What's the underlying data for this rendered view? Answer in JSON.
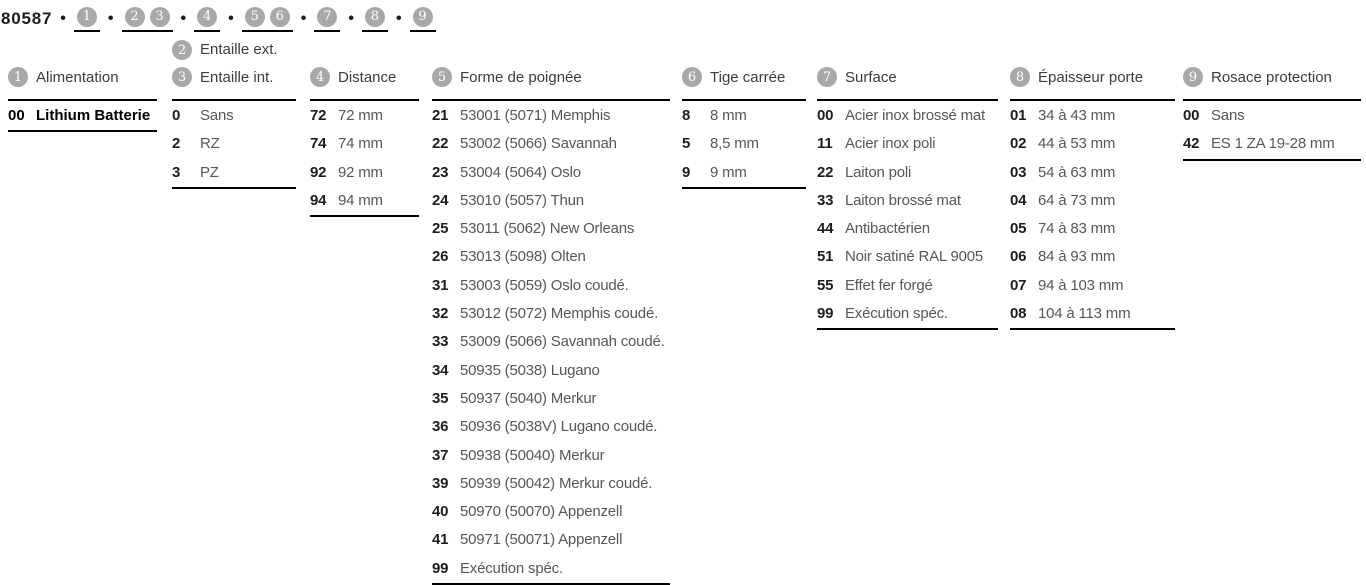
{
  "page": {
    "article_number": "80587",
    "separator": "•",
    "sequence_groups": [
      [
        "1"
      ],
      [
        "2",
        "3"
      ],
      [
        "4"
      ],
      [
        "5",
        "6"
      ],
      [
        "7"
      ],
      [
        "8"
      ],
      [
        "9"
      ]
    ]
  },
  "colors": {
    "circle_gray": "#a8a8a7",
    "label_gray": "#575756",
    "text_black": "#1d1d1b",
    "rule_black": "#000000"
  },
  "columns": [
    {
      "key": "alimentation",
      "circle": "1",
      "title": "Alimentation",
      "options": [
        {
          "code": "00",
          "label": "Lithium Batterie",
          "emphasis": true
        }
      ]
    },
    {
      "key": "entaille",
      "pre_header": {
        "circle": "2",
        "title": "Entaille ext."
      },
      "circle": "3",
      "title": "Entaille int.",
      "options": [
        {
          "code": "0",
          "label": "Sans"
        },
        {
          "code": "2",
          "label": "RZ"
        },
        {
          "code": "3",
          "label": "PZ"
        }
      ]
    },
    {
      "key": "distance",
      "circle": "4",
      "title": "Distance",
      "options": [
        {
          "code": "72",
          "label": "72 mm"
        },
        {
          "code": "74",
          "label": "74 mm"
        },
        {
          "code": "92",
          "label": "92 mm"
        },
        {
          "code": "94",
          "label": "94 mm"
        }
      ]
    },
    {
      "key": "forme-de-poignee",
      "circle": "5",
      "title": "Forme de poignée",
      "options": [
        {
          "code": "21",
          "label": "53001 (5071) Memphis"
        },
        {
          "code": "22",
          "label": "53002 (5066) Savannah"
        },
        {
          "code": "23",
          "label": "53004 (5064) Oslo"
        },
        {
          "code": "24",
          "label": "53010 (5057) Thun"
        },
        {
          "code": "25",
          "label": "53011 (5062) New Orleans"
        },
        {
          "code": "26",
          "label": "53013 (5098) Olten"
        },
        {
          "code": "31",
          "label": "53003 (5059) Oslo coudé."
        },
        {
          "code": "32",
          "label": "53012 (5072) Memphis coudé."
        },
        {
          "code": "33",
          "label": "53009 (5066) Savannah coudé."
        },
        {
          "code": "34",
          "label": "50935 (5038) Lugano"
        },
        {
          "code": "35",
          "label": "50937 (5040) Merkur"
        },
        {
          "code": "36",
          "label": "50936 (5038V) Lugano coudé."
        },
        {
          "code": "37",
          "label": "50938 (50040) Merkur"
        },
        {
          "code": "39",
          "label": "50939 (50042) Merkur coudé."
        },
        {
          "code": "40",
          "label": "50970 (50070) Appenzell"
        },
        {
          "code": "41",
          "label": "50971 (50071) Appenzell"
        },
        {
          "code": "99",
          "label": "Exécution spéc."
        }
      ]
    },
    {
      "key": "tige-carree",
      "circle": "6",
      "title": "Tige carrée",
      "options": [
        {
          "code": "8",
          "label": "8 mm"
        },
        {
          "code": "5",
          "label": "8,5 mm"
        },
        {
          "code": "9",
          "label": "9 mm"
        }
      ]
    },
    {
      "key": "surface",
      "circle": "7",
      "title": "Surface",
      "options": [
        {
          "code": "00",
          "label": "Acier inox brossé mat"
        },
        {
          "code": "11",
          "label": "Acier inox poli"
        },
        {
          "code": "22",
          "label": "Laiton poli"
        },
        {
          "code": "33",
          "label": "Laiton brossé mat"
        },
        {
          "code": "44",
          "label": "Antibactérien"
        },
        {
          "code": "51",
          "label": "Noir satiné RAL 9005"
        },
        {
          "code": "55",
          "label": "Effet fer forgé"
        },
        {
          "code": "99",
          "label": "Exécution spéc."
        }
      ]
    },
    {
      "key": "epaisseur-porte",
      "circle": "8",
      "title": "Épaisseur porte",
      "options": [
        {
          "code": "01",
          "label": "34 à 43 mm"
        },
        {
          "code": "02",
          "label": "44 à 53 mm"
        },
        {
          "code": "03",
          "label": "54 à 63 mm"
        },
        {
          "code": "04",
          "label": "64 à 73 mm"
        },
        {
          "code": "05",
          "label": "74 à 83 mm"
        },
        {
          "code": "06",
          "label": "84 à 93 mm"
        },
        {
          "code": "07",
          "label": "94 à 103 mm"
        },
        {
          "code": "08",
          "label": "104 à 113 mm"
        }
      ]
    },
    {
      "key": "rosace-protection",
      "circle": "9",
      "title": "Rosace protection",
      "options": [
        {
          "code": "00",
          "label": "Sans"
        },
        {
          "code": "42",
          "label": "ES 1 ZA 19-28 mm"
        }
      ]
    }
  ]
}
